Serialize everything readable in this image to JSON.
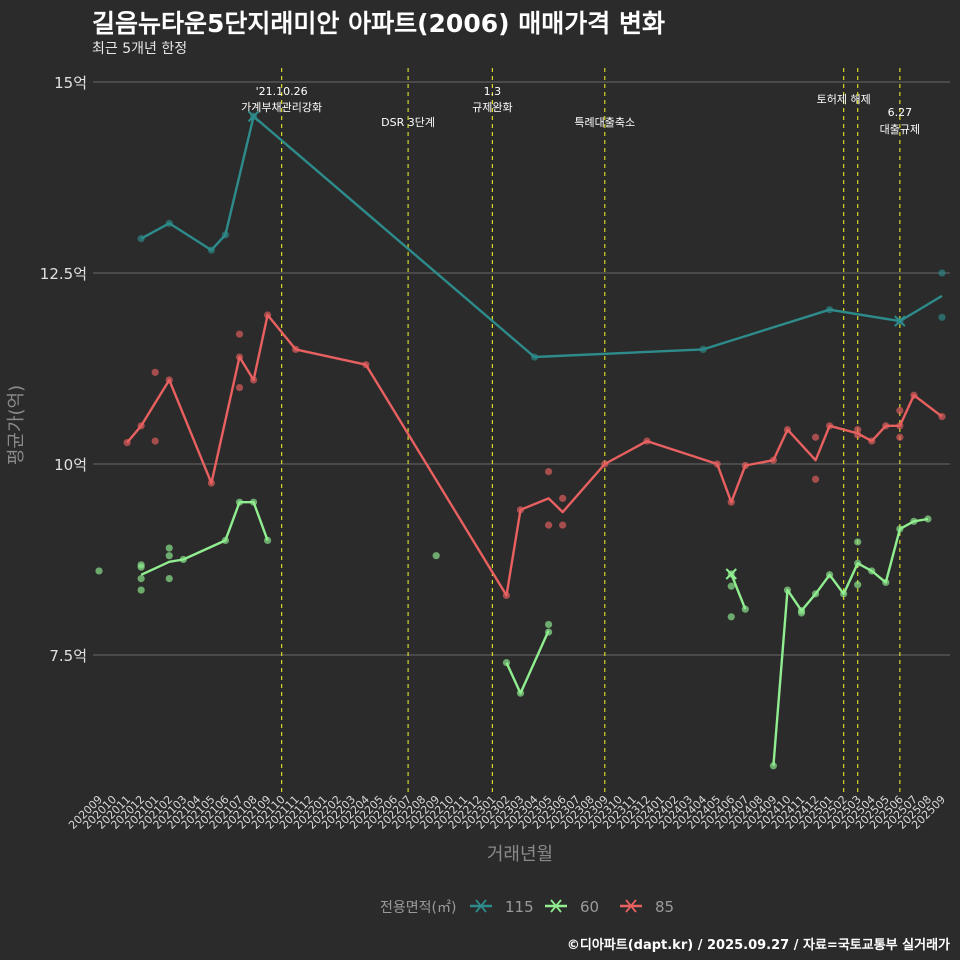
{
  "header": {
    "title": "길음뉴타운5단지래미안 아파트(2006) 매매가격 변화",
    "subtitle": "최근 5개년 한정"
  },
  "caption": "©디아파트(dapt.kr) / 2025.09.27 / 자료=국토교통부 실거래가",
  "chart_data": {
    "type": "line",
    "title": "길음뉴타운5단지래미안 아파트(2006) 매매가격 변화",
    "subtitle": "최근 5개년 한정",
    "xlabel": "거래년월",
    "ylabel": "평균가(억)",
    "ylim": [
      5.6,
      15.3
    ],
    "yticks": [
      7.5,
      10,
      12.5,
      15
    ],
    "ytick_labels": [
      "7.5억",
      "10억",
      "12.5억",
      "15억"
    ],
    "grid": true,
    "legend_title": "전용면적(㎡)",
    "legend_position": "bottom",
    "categories": [
      "202009",
      "202010",
      "202011",
      "202012",
      "202101",
      "202102",
      "202103",
      "202104",
      "202105",
      "202106",
      "202107",
      "202108",
      "202109",
      "202110",
      "202111",
      "202112",
      "202201",
      "202202",
      "202203",
      "202204",
      "202205",
      "202206",
      "202207",
      "202208",
      "202209",
      "202210",
      "202211",
      "202212",
      "202301",
      "202302",
      "202303",
      "202304",
      "202305",
      "202306",
      "202307",
      "202308",
      "202309",
      "202310",
      "202311",
      "202312",
      "202401",
      "202402",
      "202403",
      "202404",
      "202405",
      "202406",
      "202407",
      "202408",
      "202409",
      "202410",
      "202411",
      "202412",
      "202501",
      "202502",
      "202503",
      "202504",
      "202505",
      "202506",
      "202507",
      "202508",
      "202509"
    ],
    "events": [
      {
        "month": "202110",
        "lines": [
          "'21.10.26",
          "가계부채관리강화"
        ]
      },
      {
        "month": "202207",
        "lines": [
          "DSR 3단계"
        ]
      },
      {
        "month": "202301",
        "lines": [
          "1.3",
          "규제완화"
        ]
      },
      {
        "month": "202309",
        "lines": [
          "특례대출축소"
        ]
      },
      {
        "month": "202502",
        "lines": [
          "토허제 해제"
        ]
      },
      {
        "month": "202503",
        "lines": [
          ""
        ]
      },
      {
        "month": "202506",
        "lines": [
          "6.27",
          "대출규제"
        ]
      }
    ],
    "series": [
      {
        "name": "115",
        "color": "#2e8b8b",
        "line": [
          [
            "202012",
            12.95
          ],
          [
            "202102",
            13.15
          ],
          [
            "202105",
            12.8
          ],
          [
            "202106",
            13.0
          ],
          [
            "202108",
            14.55
          ],
          [
            "202304",
            11.4
          ],
          [
            "202404",
            11.5
          ],
          [
            "202501",
            12.02
          ],
          [
            "202506",
            11.87
          ],
          [
            "202509",
            12.2
          ]
        ],
        "points": [
          [
            "202012",
            12.95
          ],
          [
            "202102",
            13.15
          ],
          [
            "202105",
            12.8
          ],
          [
            "202106",
            13.0
          ],
          [
            "202108",
            14.55
          ],
          [
            "202304",
            11.4
          ],
          [
            "202404",
            11.5
          ],
          [
            "202501",
            12.02
          ],
          [
            "202506",
            11.87
          ],
          [
            "202509",
            12.5
          ],
          [
            "202509",
            11.92
          ]
        ]
      },
      {
        "name": "60",
        "color": "#90ee90",
        "line": [
          [
            "202012",
            8.55
          ],
          [
            "202102",
            8.72
          ],
          [
            "202103",
            8.75
          ],
          [
            "202106",
            9.0
          ],
          [
            "202107",
            9.5
          ],
          [
            "202108",
            9.5
          ],
          [
            "202109",
            9.0
          ],
          [
            "202302",
            7.4
          ],
          [
            "202303",
            7.0
          ],
          [
            "202305",
            7.82
          ],
          [
            "202406",
            8.56
          ],
          [
            "202407",
            8.1
          ],
          [
            "202409",
            6.05
          ],
          [
            "202410",
            8.35
          ],
          [
            "202411",
            8.08
          ],
          [
            "202412",
            8.3
          ],
          [
            "202501",
            8.55
          ],
          [
            "202502",
            8.3
          ],
          [
            "202503",
            8.7
          ],
          [
            "202504",
            8.6
          ],
          [
            "202505",
            8.45
          ],
          [
            "202506",
            9.15
          ],
          [
            "202507",
            9.25
          ],
          [
            "202508",
            9.28
          ]
        ],
        "breaks_after": [
          "202109",
          "202305",
          "202407"
        ],
        "points": [
          [
            "202009",
            8.6
          ],
          [
            "202012",
            8.68
          ],
          [
            "202012",
            8.65
          ],
          [
            "202012",
            8.5
          ],
          [
            "202012",
            8.35
          ],
          [
            "202102",
            8.9
          ],
          [
            "202102",
            8.8
          ],
          [
            "202102",
            8.5
          ],
          [
            "202103",
            8.75
          ],
          [
            "202106",
            9.0
          ],
          [
            "202107",
            9.5
          ],
          [
            "202108",
            9.5
          ],
          [
            "202109",
            9.0
          ],
          [
            "202209",
            8.8
          ],
          [
            "202302",
            7.4
          ],
          [
            "202303",
            7.0
          ],
          [
            "202305",
            7.9
          ],
          [
            "202305",
            7.8
          ],
          [
            "202406",
            8.56
          ],
          [
            "202406",
            8.4
          ],
          [
            "202406",
            8.0
          ],
          [
            "202407",
            8.1
          ],
          [
            "202409",
            6.05
          ],
          [
            "202410",
            8.35
          ],
          [
            "202411",
            8.08
          ],
          [
            "202411",
            8.05
          ],
          [
            "202412",
            8.3
          ],
          [
            "202501",
            8.55
          ],
          [
            "202502",
            8.3
          ],
          [
            "202503",
            8.7
          ],
          [
            "202503",
            8.98
          ],
          [
            "202503",
            8.42
          ],
          [
            "202504",
            8.6
          ],
          [
            "202505",
            8.45
          ],
          [
            "202506",
            9.15
          ],
          [
            "202507",
            9.25
          ],
          [
            "202508",
            9.28
          ]
        ]
      },
      {
        "name": "85",
        "color": "#e86060",
        "line": [
          [
            "202011",
            10.28
          ],
          [
            "202012",
            10.5
          ],
          [
            "202101",
            10.8
          ],
          [
            "202102",
            11.1
          ],
          [
            "202105",
            9.75
          ],
          [
            "202107",
            11.4
          ],
          [
            "202108",
            11.1
          ],
          [
            "202109",
            11.95
          ],
          [
            "202111",
            11.5
          ],
          [
            "202204",
            11.3
          ],
          [
            "202302",
            8.28
          ],
          [
            "202303",
            9.4
          ],
          [
            "202305",
            9.55
          ],
          [
            "202306",
            9.37
          ],
          [
            "202309",
            10.0
          ],
          [
            "202312",
            10.3
          ],
          [
            "202405",
            10.0
          ],
          [
            "202406",
            9.5
          ],
          [
            "202407",
            9.98
          ],
          [
            "202409",
            10.05
          ],
          [
            "202410",
            10.45
          ],
          [
            "202412",
            10.05
          ],
          [
            "202501",
            10.5
          ],
          [
            "202503",
            10.4
          ],
          [
            "202504",
            10.3
          ],
          [
            "202505",
            10.5
          ],
          [
            "202506",
            10.5
          ],
          [
            "202507",
            10.9
          ],
          [
            "202509",
            10.62
          ]
        ],
        "points": [
          [
            "202011",
            10.28
          ],
          [
            "202012",
            10.5
          ],
          [
            "202101",
            11.2
          ],
          [
            "202101",
            10.3
          ],
          [
            "202102",
            11.1
          ],
          [
            "202105",
            9.75
          ],
          [
            "202107",
            11.7
          ],
          [
            "202107",
            11.4
          ],
          [
            "202107",
            11.0
          ],
          [
            "202108",
            11.1
          ],
          [
            "202109",
            11.95
          ],
          [
            "202111",
            11.5
          ],
          [
            "202204",
            11.3
          ],
          [
            "202302",
            8.28
          ],
          [
            "202303",
            9.4
          ],
          [
            "202305",
            9.9
          ],
          [
            "202305",
            9.2
          ],
          [
            "202306",
            9.55
          ],
          [
            "202306",
            9.2
          ],
          [
            "202309",
            10.0
          ],
          [
            "202312",
            10.3
          ],
          [
            "202405",
            10.0
          ],
          [
            "202406",
            9.5
          ],
          [
            "202407",
            9.98
          ],
          [
            "202409",
            10.05
          ],
          [
            "202410",
            10.45
          ],
          [
            "202412",
            10.35
          ],
          [
            "202412",
            9.8
          ],
          [
            "202501",
            10.5
          ],
          [
            "202503",
            10.45
          ],
          [
            "202503",
            10.38
          ],
          [
            "202504",
            10.3
          ],
          [
            "202505",
            10.5
          ],
          [
            "202506",
            10.5
          ],
          [
            "202506",
            10.7
          ],
          [
            "202506",
            10.35
          ],
          [
            "202507",
            10.9
          ],
          [
            "202509",
            10.62
          ]
        ]
      }
    ],
    "x_markers": [
      {
        "series": "115",
        "month": "202108",
        "value": 14.55
      },
      {
        "series": "115",
        "month": "202506",
        "value": 11.87
      },
      {
        "series": "60",
        "month": "202406",
        "value": 8.56
      }
    ]
  }
}
